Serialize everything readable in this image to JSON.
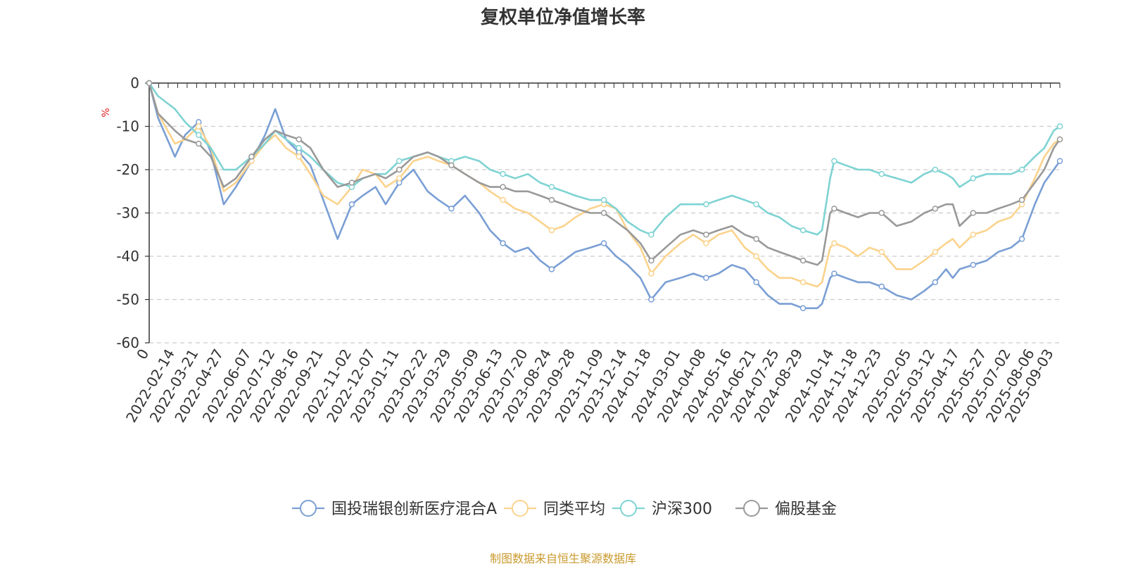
{
  "chart_data": {
    "type": "line",
    "title": "复权单位净值增长率",
    "ylabel": "%",
    "ylim": [
      -60,
      0
    ],
    "yticks": [
      0,
      -10,
      -20,
      -30,
      -40,
      -50,
      -60
    ],
    "xlim": [
      "2022-01-07",
      "2025-09-12"
    ],
    "x_tick_labels": [
      "0",
      "2022-02-14",
      "2022-03-21",
      "2022-04-27",
      "2022-06-07",
      "2022-07-12",
      "2022-08-16",
      "2022-09-21",
      "2022-11-02",
      "2022-12-07",
      "2023-01-11",
      "2023-02-22",
      "2023-03-29",
      "2023-05-09",
      "2023-06-13",
      "2023-07-20",
      "2023-08-24",
      "2023-09-28",
      "2023-11-09",
      "2023-12-14",
      "2024-01-18",
      "2024-03-01",
      "2024-04-08",
      "2024-05-16",
      "2024-06-21",
      "2024-07-25",
      "2024-08-29",
      "2024-10-14",
      "2024-11-18",
      "2024-12-23",
      "2025-02-05",
      "2025-03-12",
      "2025-04-17",
      "2025-05-27",
      "2025-07-02",
      "2025-08-06",
      "2025-09-03"
    ],
    "grid": "horizontal dashed",
    "legend_position": "bottom",
    "source": "制图数据来自恒生聚源数据库",
    "x": [
      "2022-01-07",
      "2022-01-20",
      "2022-02-14",
      "2022-03-01",
      "2022-03-21",
      "2022-04-08",
      "2022-04-27",
      "2022-05-15",
      "2022-06-07",
      "2022-06-27",
      "2022-07-12",
      "2022-07-28",
      "2022-08-16",
      "2022-09-02",
      "2022-09-21",
      "2022-10-12",
      "2022-11-02",
      "2022-11-18",
      "2022-12-07",
      "2022-12-22",
      "2023-01-11",
      "2023-02-01",
      "2023-02-22",
      "2023-03-10",
      "2023-03-29",
      "2023-04-18",
      "2023-05-09",
      "2023-05-25",
      "2023-06-13",
      "2023-07-01",
      "2023-07-20",
      "2023-08-07",
      "2023-08-24",
      "2023-09-11",
      "2023-09-28",
      "2023-10-20",
      "2023-11-09",
      "2023-11-27",
      "2023-12-14",
      "2024-01-02",
      "2024-01-18",
      "2024-02-08",
      "2024-03-01",
      "2024-03-20",
      "2024-04-08",
      "2024-04-26",
      "2024-05-16",
      "2024-06-04",
      "2024-06-21",
      "2024-07-08",
      "2024-07-25",
      "2024-08-12",
      "2024-08-29",
      "2024-09-19",
      "2024-09-26",
      "2024-10-08",
      "2024-10-14",
      "2024-10-31",
      "2024-11-18",
      "2024-12-05",
      "2024-12-23",
      "2025-01-14",
      "2025-02-05",
      "2025-02-24",
      "2025-03-12",
      "2025-03-28",
      "2025-04-07",
      "2025-04-17",
      "2025-05-07",
      "2025-05-27",
      "2025-06-13",
      "2025-07-02",
      "2025-07-18",
      "2025-08-06",
      "2025-08-20",
      "2025-09-03",
      "2025-09-12"
    ],
    "series": [
      {
        "name": "国投瑞银创新医疗混合A",
        "color": "#7a9fd4",
        "values": [
          0,
          -8,
          -17,
          -12,
          -9,
          -16,
          -28,
          -24,
          -18,
          -12,
          -6,
          -13,
          -16,
          -19,
          -27,
          -36,
          -28,
          -26,
          -24,
          -28,
          -23,
          -20,
          -25,
          -27,
          -29,
          -26,
          -30,
          -34,
          -37,
          -39,
          -38,
          -41,
          -43,
          -41,
          -39,
          -38,
          -37,
          -40,
          -42,
          -45,
          -50,
          -46,
          -45,
          -44,
          -45,
          -44,
          -42,
          -43,
          -46,
          -49,
          -51,
          -51,
          -52,
          -52,
          -51,
          -45,
          -44,
          -45,
          -46,
          -46,
          -47,
          -49,
          -50,
          -48,
          -46,
          -43,
          -45,
          -43,
          -42,
          -41,
          -39,
          -38,
          -36,
          -28,
          -23,
          -20,
          -18
        ]
      },
      {
        "name": "同类平均",
        "color": "#fbd38d",
        "values": [
          0,
          -7,
          -14,
          -13,
          -10,
          -15,
          -25,
          -23,
          -18,
          -14,
          -12,
          -15,
          -17,
          -21,
          -26,
          -28,
          -24,
          -20,
          -21,
          -24,
          -22,
          -18,
          -17,
          -18,
          -19,
          -21,
          -23,
          -25,
          -27,
          -29,
          -30,
          -32,
          -34,
          -33,
          -31,
          -29,
          -28,
          -29,
          -34,
          -38,
          -44,
          -40,
          -37,
          -35,
          -37,
          -35,
          -34,
          -38,
          -40,
          -43,
          -45,
          -45,
          -46,
          -47,
          -46,
          -38,
          -37,
          -38,
          -40,
          -38,
          -39,
          -43,
          -43,
          -41,
          -39,
          -37,
          -36,
          -38,
          -35,
          -34,
          -32,
          -31,
          -28,
          -22,
          -17,
          -14,
          -13
        ]
      },
      {
        "name": "沪深300",
        "color": "#7fd3d3",
        "values": [
          0,
          -3,
          -6,
          -9,
          -12,
          -15,
          -20,
          -20,
          -17,
          -14,
          -11,
          -13,
          -15,
          -17,
          -20,
          -23,
          -24,
          -22,
          -21,
          -21,
          -18,
          -17,
          -16,
          -17,
          -18,
          -17,
          -18,
          -20,
          -21,
          -22,
          -21,
          -23,
          -24,
          -25,
          -26,
          -27,
          -27,
          -29,
          -32,
          -34,
          -35,
          -31,
          -28,
          -28,
          -28,
          -27,
          -26,
          -27,
          -28,
          -30,
          -31,
          -33,
          -34,
          -35,
          -34,
          -22,
          -18,
          -19,
          -20,
          -20,
          -21,
          -22,
          -23,
          -21,
          -20,
          -21,
          -22,
          -24,
          -22,
          -21,
          -21,
          -21,
          -20,
          -17,
          -15,
          -11,
          -10
        ]
      },
      {
        "name": "偏股基金",
        "color": "#999999",
        "values": [
          0,
          -7,
          -11,
          -13,
          -14,
          -17,
          -24,
          -22,
          -17,
          -13,
          -11,
          -12,
          -13,
          -15,
          -20,
          -24,
          -23,
          -22,
          -21,
          -22,
          -20,
          -17,
          -16,
          -17,
          -19,
          -21,
          -23,
          -24,
          -24,
          -25,
          -25,
          -26,
          -27,
          -28,
          -29,
          -30,
          -30,
          -32,
          -34,
          -37,
          -41,
          -38,
          -35,
          -34,
          -35,
          -34,
          -33,
          -35,
          -36,
          -38,
          -39,
          -40,
          -41,
          -42,
          -41,
          -30,
          -29,
          -30,
          -31,
          -30,
          -30,
          -33,
          -32,
          -30,
          -29,
          -28,
          -28,
          -33,
          -30,
          -30,
          -29,
          -28,
          -27,
          -23,
          -20,
          -15,
          -13
        ]
      }
    ]
  }
}
